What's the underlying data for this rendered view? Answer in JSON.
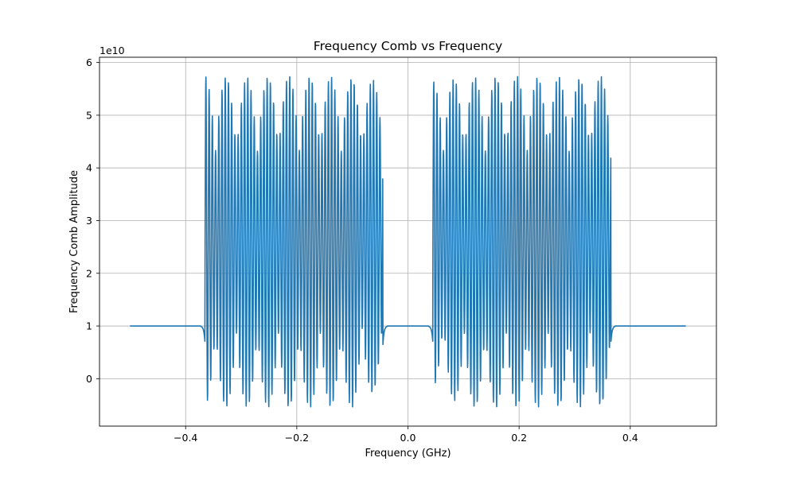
{
  "chart_data": {
    "type": "line",
    "title": "Frequency Comb vs Frequency",
    "xlabel": "Frequency (GHz)",
    "ylabel": "Frequency Comb Amplitude",
    "y_scale_label": "1e10",
    "xlim": [
      -0.555,
      0.555
    ],
    "ylim": [
      -0.9,
      6.1
    ],
    "y_multiplier": 10000000000,
    "grid": true,
    "legend": "none",
    "color": "#1f77b4",
    "x_ticks": [
      -0.4,
      -0.2,
      0.0,
      0.2,
      0.4
    ],
    "x_tick_labels": [
      "−0.4",
      "−0.2",
      "0.0",
      "0.2",
      "0.4"
    ],
    "y_ticks": [
      0,
      1,
      2,
      3,
      4,
      5,
      6
    ],
    "y_tick_labels": [
      "0",
      "1",
      "2",
      "3",
      "4",
      "5",
      "6"
    ],
    "baseline": 1.0,
    "x_range": [
      -0.5,
      0.5
    ],
    "bands": [
      [
        -0.365,
        -0.045
      ],
      [
        0.045,
        0.365
      ]
    ],
    "osc_period": 0.0058,
    "upper_envelope": [
      [
        -0.365,
        5.75
      ],
      [
        -0.3,
        5.72
      ],
      [
        -0.2,
        5.75
      ],
      [
        -0.1,
        5.72
      ],
      [
        -0.045,
        5.65
      ],
      [
        0.045,
        5.65
      ],
      [
        0.1,
        5.72
      ],
      [
        0.2,
        5.75
      ],
      [
        0.3,
        5.72
      ],
      [
        0.365,
        5.75
      ]
    ],
    "lower_envelope": [
      [
        -0.365,
        -0.52
      ],
      [
        -0.3,
        -0.55
      ],
      [
        -0.2,
        -0.55
      ],
      [
        -0.1,
        -0.55
      ],
      [
        -0.045,
        -0.15
      ],
      [
        0.045,
        -0.15
      ],
      [
        0.1,
        -0.55
      ],
      [
        0.2,
        -0.55
      ],
      [
        0.3,
        -0.55
      ],
      [
        0.365,
        -0.52
      ]
    ]
  }
}
